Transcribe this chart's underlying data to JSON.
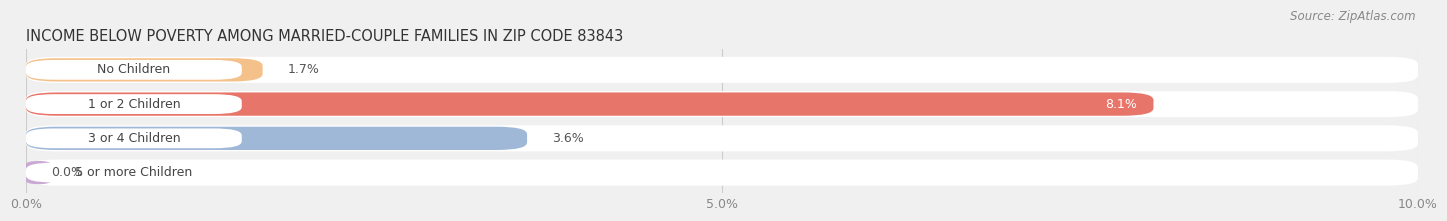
{
  "title": "INCOME BELOW POVERTY AMONG MARRIED-COUPLE FAMILIES IN ZIP CODE 83843",
  "source": "Source: ZipAtlas.com",
  "categories": [
    "No Children",
    "1 or 2 Children",
    "3 or 4 Children",
    "5 or more Children"
  ],
  "values": [
    1.7,
    8.1,
    3.6,
    0.0
  ],
  "bar_colors": [
    "#f5c18a",
    "#e8756a",
    "#a0b8d8",
    "#c9a8d4"
  ],
  "xlim": [
    0,
    10.0
  ],
  "xticks": [
    0.0,
    5.0,
    10.0
  ],
  "xticklabels": [
    "0.0%",
    "5.0%",
    "10.0%"
  ],
  "background_color": "#f0f0f0",
  "bar_bg_color": "#efefef",
  "row_bg_color": "#ffffff",
  "title_fontsize": 10.5,
  "source_fontsize": 8.5,
  "tick_fontsize": 9,
  "label_fontsize": 9,
  "value_fontsize": 9
}
